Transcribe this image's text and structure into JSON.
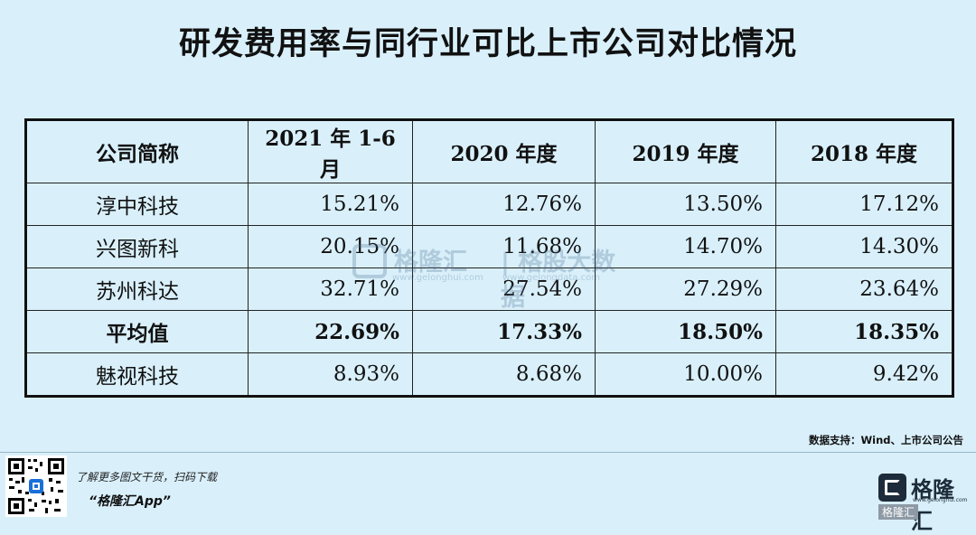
{
  "title": "研发费用率与同行业可比上市公司对比情况",
  "table": {
    "headers": [
      "公司简称",
      "2021 年 1-6 月",
      "2020 年度",
      "2019 年度",
      "2018 年度"
    ],
    "rows": [
      [
        "淳中科技",
        "15.21%",
        "12.76%",
        "13.50%",
        "17.12%"
      ],
      [
        "兴图新科",
        "20.15%",
        "11.68%",
        "14.70%",
        "14.30%"
      ],
      [
        "苏州科达",
        "32.71%",
        "27.54%",
        "27.29%",
        "23.64%"
      ],
      [
        "平均值",
        "22.69%",
        "17.33%",
        "18.50%",
        "18.35%"
      ],
      [
        "魅视科技",
        "8.93%",
        "8.68%",
        "10.00%",
        "9.42%"
      ]
    ]
  },
  "watermark": {
    "brand": "格隆汇",
    "site": "www.gelonghui.com",
    "brand2": "| 格股大数据",
    "site2": "www.gelongdata.com"
  },
  "source": "数据支持：Wind、上市公司公告",
  "promo": {
    "line1": "了解更多图文干货，扫码下载",
    "line2": "“格隆汇App”"
  },
  "logo": {
    "text": "格隆汇",
    "site": "www.gelonghui.com",
    "sub": "格隆汇"
  },
  "colors": {
    "background": "#d9f0fb",
    "border": "#111111"
  }
}
